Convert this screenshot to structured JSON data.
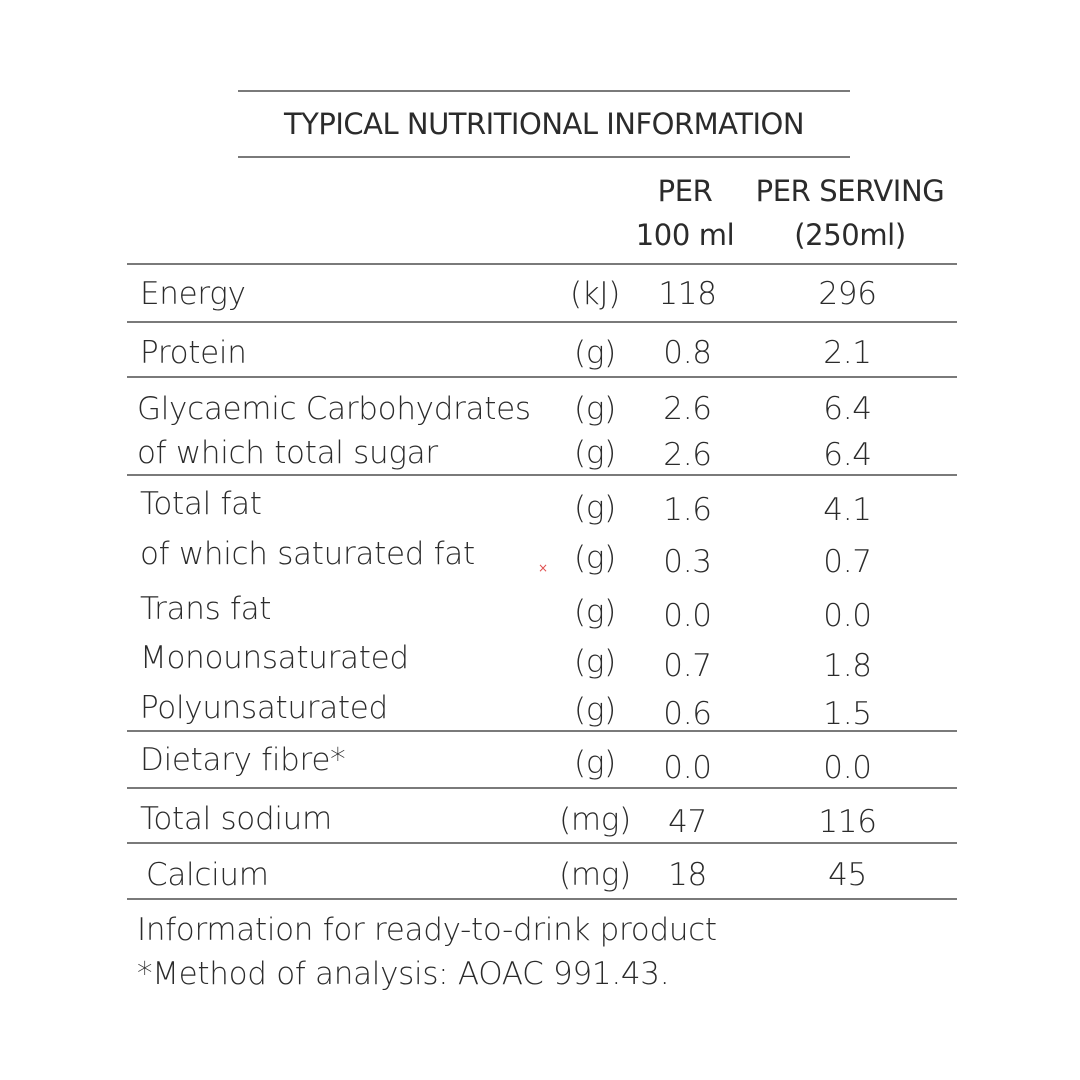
{
  "title": "TYPICAL NUTRITIONAL INFORMATION",
  "headers": {
    "per100_line1": "PER",
    "per100_line2": "100 ml",
    "serving_line1": "PER SERVING",
    "serving_line2": "(250ml)"
  },
  "rows": [
    {
      "name": "Energy",
      "unit": "(kJ)",
      "per100": "118",
      "serving": "296"
    },
    {
      "name": "Protein",
      "unit": "(g)",
      "per100": "0.8",
      "serving": "2.1"
    },
    {
      "name": "Glycaemic Carbohydrates",
      "unit": "(g)",
      "per100": "2.6",
      "serving": "6.4"
    },
    {
      "name": "of which total sugar",
      "unit": "(g)",
      "per100": "2.6",
      "serving": "6.4"
    },
    {
      "name": "Total fat",
      "unit": "(g)",
      "per100": "1.6",
      "serving": "4.1"
    },
    {
      "name": "of which saturated fat",
      "unit": "(g)",
      "per100": "0.3",
      "serving": "0.7"
    },
    {
      "name": "Trans fat",
      "unit": "(g)",
      "per100": "0.0",
      "serving": "0.0"
    },
    {
      "name": "Monounsaturated",
      "unit": "(g)",
      "per100": "0.7",
      "serving": "1.8"
    },
    {
      "name": "Polyunsaturated",
      "unit": "(g)",
      "per100": "0.6",
      "serving": "1.5"
    },
    {
      "name": "Dietary fibre*",
      "unit": "(g)",
      "per100": "0.0",
      "serving": "0.0"
    },
    {
      "name": "Total sodium",
      "unit": "(mg)",
      "per100": "47",
      "serving": "116"
    },
    {
      "name": "Calcium",
      "unit": "(mg)",
      "per100": "18",
      "serving": "45"
    }
  ],
  "footer": {
    "line1": "Information for ready-to-drink product",
    "line2": "*Method of analysis: AOAC 991.43."
  },
  "stray_mark": "×"
}
